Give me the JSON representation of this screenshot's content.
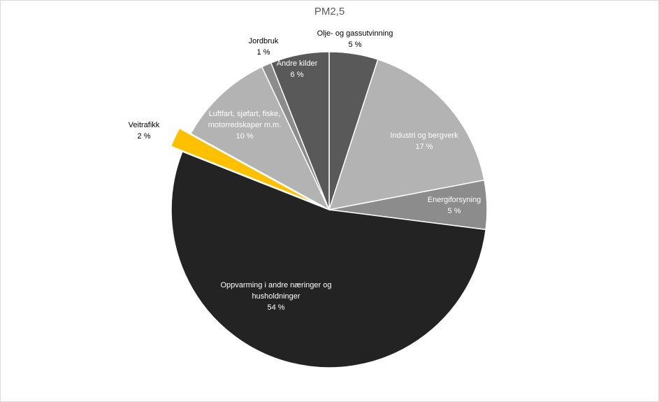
{
  "chart_data": {
    "type": "pie",
    "title": "PM2,5",
    "slices": [
      {
        "label": [
          "Olje- og gassutvinning"
        ],
        "value": 5,
        "value_label": "5 %",
        "color": "#595959",
        "label_color": "#000000",
        "inside": false
      },
      {
        "label": [
          "Industri og bergverk"
        ],
        "value": 17,
        "value_label": "17 %",
        "color": "#b3b3b3",
        "label_color": "#ffffff",
        "inside": true
      },
      {
        "label": [
          "Energiforsyning"
        ],
        "value": 5,
        "value_label": "5 %",
        "color": "#8c8c8c",
        "label_color": "#ffffff",
        "inside": true
      },
      {
        "label": [
          "Oppvarming i andre næringer og",
          "husholdninger"
        ],
        "value": 54,
        "value_label": "54 %",
        "color": "#232323",
        "label_color": "#ffffff",
        "inside": true
      },
      {
        "label": [
          "Veitrafikk"
        ],
        "value": 2,
        "value_label": "2 %",
        "color": "#ffc000",
        "label_color": "#000000",
        "inside": false,
        "exploded": true
      },
      {
        "label": [
          "Luftfart, sjøfart, fiske,",
          "motorredskaper m.m."
        ],
        "value": 10,
        "value_label": "10 %",
        "color": "#b3b3b3",
        "label_color": "#ffffff",
        "inside": true
      },
      {
        "label": [
          "Jordbruk"
        ],
        "value": 1,
        "value_label": "1 %",
        "color": "#8c8c8c",
        "label_color": "#000000",
        "inside": false
      },
      {
        "label": [
          "Andre kilder"
        ],
        "value": 6,
        "value_label": "6 %",
        "color": "#595959",
        "label_color": "#ffffff",
        "inside": true
      }
    ]
  }
}
